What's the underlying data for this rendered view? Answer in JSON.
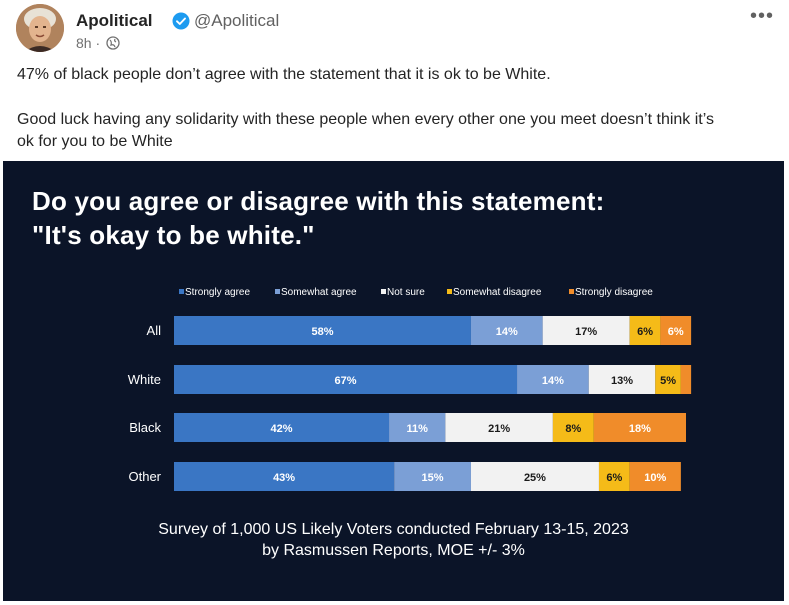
{
  "post": {
    "author_name": "Apolitical",
    "handle": "@Apolitical",
    "time": "8h",
    "time_separator": "·",
    "more_label": "•••",
    "text_line1": "47% of black people don’t agree with the statement that it is ok to be White.",
    "text_line2": "Good luck having any solidarity with these people when every other one you meet doesn’t think it’s",
    "text_line3": "ok for you to be White",
    "icons": {
      "verified": "verified-badge-icon",
      "audience": "globe-icon",
      "more": "more-options-icon"
    },
    "colors": {
      "verified": "#1d9bf0"
    }
  },
  "chart_data": {
    "type": "bar",
    "orientation": "horizontal",
    "stacked": true,
    "title_line1": "Do you agree or disagree with this statement:",
    "title_line2": "\"It's okay to be white.\"",
    "categories": [
      "All",
      "White",
      "Black",
      "Other"
    ],
    "series": [
      {
        "name": "Strongly agree",
        "color": "#3a76c4",
        "values": [
          58,
          67,
          42,
          43
        ],
        "labels": [
          "58%",
          "67%",
          "42%",
          "43%"
        ]
      },
      {
        "name": "Somewhat agree",
        "color": "#7b9fd6",
        "values": [
          14,
          14,
          11,
          15
        ],
        "labels": [
          "14%",
          "14%",
          "11%",
          "15%"
        ]
      },
      {
        "name": "Not sure",
        "color": "#f2f2f2",
        "values": [
          17,
          13,
          21,
          25
        ],
        "labels": [
          "17%",
          "13%",
          "21%",
          "25%"
        ]
      },
      {
        "name": "Somewhat disagree",
        "color": "#f5bb18",
        "values": [
          6,
          5,
          8,
          6
        ],
        "labels": [
          "6%",
          "5%",
          "8%",
          "6%"
        ]
      },
      {
        "name": "Strongly disagree",
        "color": "#f08c2a",
        "values": [
          6,
          2,
          18,
          10
        ],
        "labels": [
          "6%",
          "",
          "18%",
          "10%"
        ]
      }
    ],
    "legend_position": "top",
    "xlim": [
      0,
      100
    ],
    "footnote_line1": "Survey of 1,000 US Likely Voters conducted February 13-15, 2023",
    "footnote_line2": "by Rasmussen Reports, MOE +/- 3%"
  }
}
